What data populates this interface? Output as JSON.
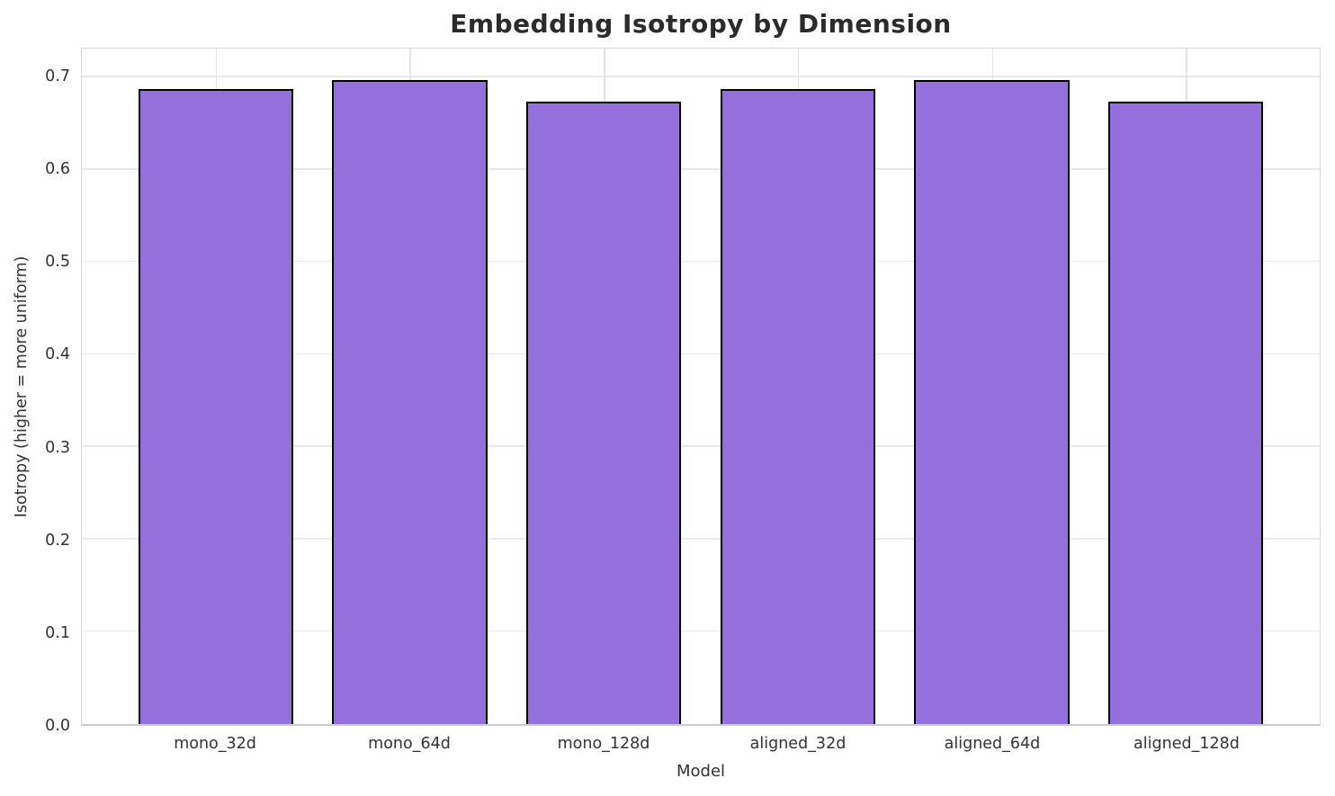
{
  "chart_data": {
    "type": "bar",
    "title": "Embedding Isotropy by Dimension",
    "xlabel": "Model",
    "ylabel": "Isotropy (higher = more uniform)",
    "categories": [
      "mono_32d",
      "mono_64d",
      "mono_128d",
      "aligned_32d",
      "aligned_64d",
      "aligned_128d"
    ],
    "values": [
      0.687,
      0.697,
      0.674,
      0.687,
      0.697,
      0.674
    ],
    "ylim": [
      0,
      0.731
    ],
    "xlim": [
      -0.69,
      5.69
    ],
    "yticks": [
      0.0,
      0.1,
      0.2,
      0.3,
      0.4,
      0.5,
      0.6,
      0.7
    ],
    "ytick_labels": [
      "0.0",
      "0.1",
      "0.2",
      "0.3",
      "0.4",
      "0.5",
      "0.6",
      "0.7"
    ],
    "bar_width_units": 0.8,
    "bar_color": "#9370DB",
    "bar_edge_color": "#000000",
    "grid": true,
    "legend": false
  }
}
